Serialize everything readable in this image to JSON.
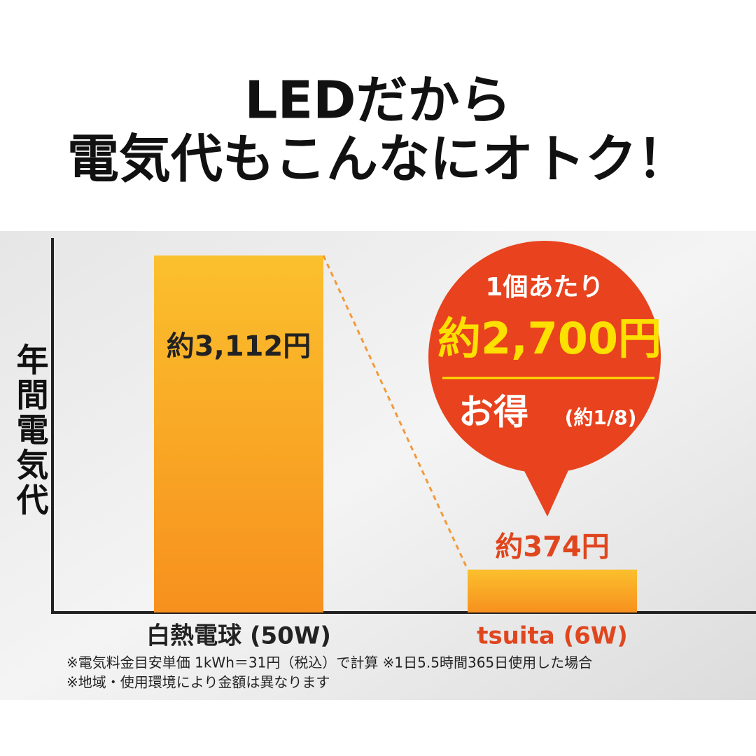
{
  "chart_data": {
    "type": "bar",
    "title": "LEDだから",
    "subtitle": "電気代もこんなにオトク！",
    "y_label": "年間電気代",
    "categories": [
      "白熱電球 (50W)",
      "tsuita (6W)"
    ],
    "values": [
      3112,
      374
    ],
    "value_labels": [
      "約3,112円",
      "約374円"
    ],
    "color": [
      "#fbc02d",
      "#f7901e"
    ],
    "label_colors": [
      "#222222",
      "#e0461e"
    ],
    "callout": {
      "color": "#e8431e",
      "lines": [
        "1個あたり",
        "約2,700円",
        "お得",
        "(約1/8)"
      ]
    },
    "notes": [
      "※電気料金目安単価 1kWh＝31円（税込）で計算 ※1日5.5時間365日使用した場合",
      "※地域・使用環境により金額は異なります"
    ]
  }
}
